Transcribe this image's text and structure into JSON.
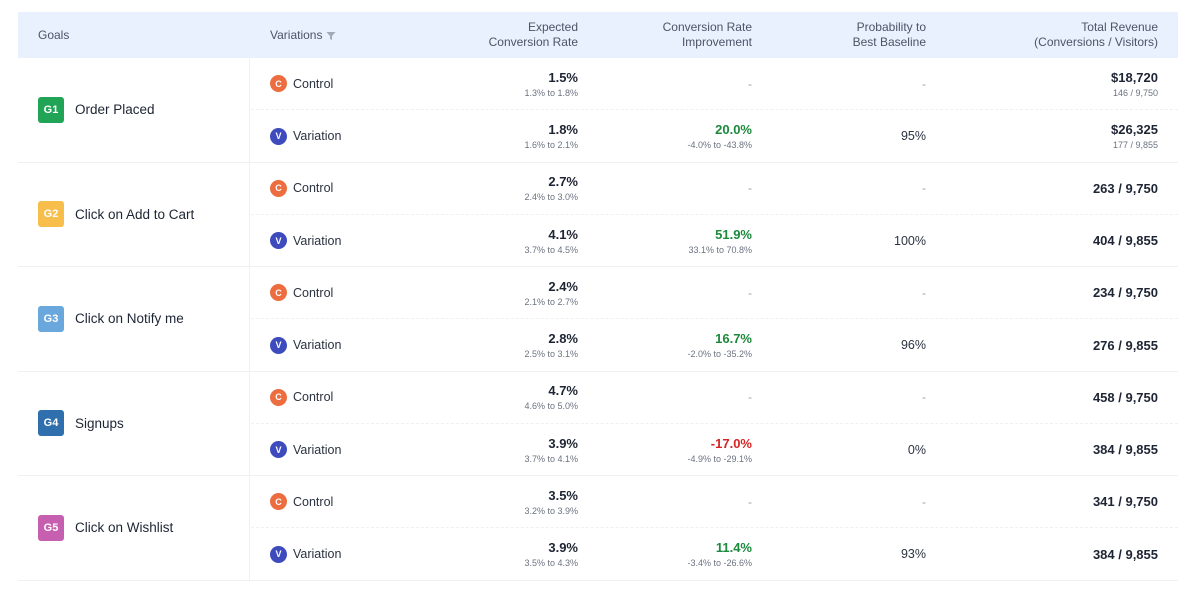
{
  "header": {
    "goals": "Goals",
    "variations": "Variations",
    "expected_cr": [
      "Expected",
      "Conversion Rate"
    ],
    "cr_improvement": [
      "Conversion Rate",
      "Improvement"
    ],
    "probability": [
      "Probability to",
      "Best Baseline"
    ],
    "total_revenue": [
      "Total Revenue",
      "(Conversions / Visitors)"
    ]
  },
  "colors": {
    "g1": "#22a457",
    "g2": "#f8be4c",
    "g3": "#69a7dc",
    "g4": "#2f6fae",
    "g5": "#c75fb0",
    "control": "#ec6d3f",
    "variation": "#3d4bbd",
    "positive": "#1b8a3c",
    "negative": "#d42424"
  },
  "goals": [
    {
      "badge": "G1",
      "name": "Order Placed",
      "rows": [
        {
          "type": "Control",
          "icon": "C",
          "ecr": "1.5%",
          "ecr_range": "1.3% to 1.8%",
          "cri": "-",
          "cri_range": "",
          "prob": "-",
          "rev": "$18,720",
          "rev_sub": "146 / 9,750"
        },
        {
          "type": "Variation",
          "icon": "V",
          "ecr": "1.8%",
          "ecr_range": "1.6% to 2.1%",
          "cri": "20.0%",
          "cri_range": "-4.0% to -43.8%",
          "prob": "95%",
          "rev": "$26,325",
          "rev_sub": "177 / 9,855"
        }
      ]
    },
    {
      "badge": "G2",
      "name": "Click on Add to Cart",
      "rows": [
        {
          "type": "Control",
          "icon": "C",
          "ecr": "2.7%",
          "ecr_range": "2.4% to 3.0%",
          "cri": "-",
          "cri_range": "",
          "prob": "-",
          "rev": "263 / 9,750",
          "rev_sub": ""
        },
        {
          "type": "Variation",
          "icon": "V",
          "ecr": "4.1%",
          "ecr_range": "3.7% to 4.5%",
          "cri": "51.9%",
          "cri_range": "33.1% to 70.8%",
          "prob": "100%",
          "rev": "404 / 9,855",
          "rev_sub": ""
        }
      ]
    },
    {
      "badge": "G3",
      "name": "Click on Notify me",
      "rows": [
        {
          "type": "Control",
          "icon": "C",
          "ecr": "2.4%",
          "ecr_range": "2.1% to 2.7%",
          "cri": "-",
          "cri_range": "",
          "prob": "-",
          "rev": "234 / 9,750",
          "rev_sub": ""
        },
        {
          "type": "Variation",
          "icon": "V",
          "ecr": "2.8%",
          "ecr_range": "2.5% to 3.1%",
          "cri": "16.7%",
          "cri_range": "-2.0% to -35.2%",
          "prob": "96%",
          "rev": "276 / 9,855",
          "rev_sub": ""
        }
      ]
    },
    {
      "badge": "G4",
      "name": "Signups",
      "rows": [
        {
          "type": "Control",
          "icon": "C",
          "ecr": "4.7%",
          "ecr_range": "4.6% to 5.0%",
          "cri": "-",
          "cri_range": "",
          "prob": "-",
          "rev": "458 / 9,750",
          "rev_sub": ""
        },
        {
          "type": "Variation",
          "icon": "V",
          "ecr": "3.9%",
          "ecr_range": "3.7% to 4.1%",
          "cri": "-17.0%",
          "cri_range": "-4.9% to -29.1%",
          "prob": "0%",
          "rev": "384 / 9,855",
          "rev_sub": ""
        }
      ]
    },
    {
      "badge": "G5",
      "name": "Click on Wishlist",
      "rows": [
        {
          "type": "Control",
          "icon": "C",
          "ecr": "3.5%",
          "ecr_range": "3.2% to 3.9%",
          "cri": "-",
          "cri_range": "",
          "prob": "-",
          "rev": "341 / 9,750",
          "rev_sub": ""
        },
        {
          "type": "Variation",
          "icon": "V",
          "ecr": "3.9%",
          "ecr_range": "3.5% to 4.3%",
          "cri": "11.4%",
          "cri_range": "-3.4% to -26.6%",
          "prob": "93%",
          "rev": "384 / 9,855",
          "rev_sub": ""
        }
      ]
    }
  ]
}
